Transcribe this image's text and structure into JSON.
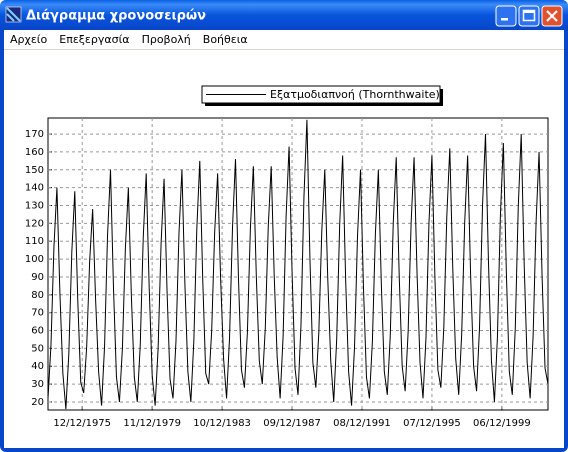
{
  "window": {
    "title": "Διάγραμμα χρονοσειρών"
  },
  "menu": [
    "Αρχείο",
    "Επεξεργασία",
    "Προβολή",
    "Βοήθεια"
  ],
  "chart_data": {
    "type": "line",
    "legend": "top",
    "grid": true,
    "series": [
      {
        "name": "Εξατμοδιαπνοή (Thornthwaite)",
        "color": "#000000",
        "values": [
          22,
          52,
          107,
          140,
          81,
          36,
          16,
          47,
          104,
          138,
          77,
          31,
          25,
          51,
          99,
          128,
          77,
          37,
          18,
          51,
          113,
          150,
          84,
          34,
          20,
          50,
          106,
          140,
          80,
          34,
          20,
          52,
          112,
          148,
          84,
          35,
          18,
          50,
          109,
          145,
          82,
          33,
          22,
          54,
          114,
          150,
          86,
          37,
          20,
          54,
          117,
          155,
          88,
          36,
          30,
          60,
          115,
          148,
          89,
          44,
          22,
          56,
          118,
          156,
          89,
          38,
          28,
          59,
          117,
          152,
          90,
          43,
          30,
          61,
          118,
          152,
          91,
          45,
          22,
          57,
          124,
          163,
          93,
          39,
          24,
          63,
          135,
          178,
          101,
          42,
          28,
          59,
          116,
          150,
          89,
          43,
          20,
          55,
          119,
          158,
          89,
          37,
          18,
          51,
          113,
          150,
          84,
          34,
          22,
          54,
          114,
          150,
          86,
          37,
          24,
          57,
          120,
          157,
          91,
          40,
          26,
          59,
          120,
          157,
          92,
          42,
          22,
          56,
          120,
          158,
          90,
          38,
          28,
          62,
          124,
          162,
          95,
          44,
          24,
          58,
          120,
          158,
          91,
          40,
          26,
          62,
          130,
          170,
          98,
          43,
          20,
          56,
          124,
          165,
          93,
          37,
          24,
          61,
          129,
          170,
          97,
          42,
          22,
          57,
          121,
          160,
          91,
          39,
          30
        ]
      }
    ],
    "xlim": [
      0,
      168
    ],
    "xticks": [
      {
        "value": 11.5,
        "label": "12/12/1975"
      },
      {
        "value": 35,
        "label": "11/12/1979"
      },
      {
        "value": 58.5,
        "label": "10/12/1983"
      },
      {
        "value": 82,
        "label": "09/12/1987"
      },
      {
        "value": 105.5,
        "label": "08/12/1991"
      },
      {
        "value": 129,
        "label": "07/12/1995"
      },
      {
        "value": 152.5,
        "label": "06/12/1999"
      }
    ],
    "ylim": [
      15.5,
      179
    ],
    "yticks": [
      20,
      30,
      40,
      50,
      60,
      70,
      80,
      90,
      100,
      110,
      120,
      130,
      140,
      150,
      160,
      170
    ]
  }
}
